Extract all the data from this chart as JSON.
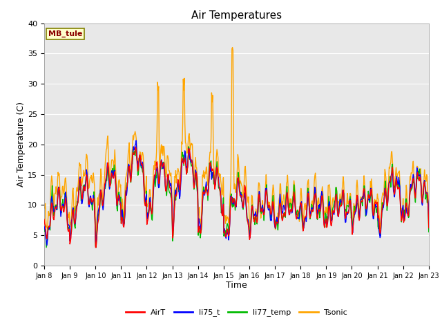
{
  "title": "Air Temperatures",
  "xlabel": "Time",
  "ylabel": "Air Temperature (C)",
  "ylim": [
    0,
    40
  ],
  "background_color": "#e8e8e8",
  "xtick_labels": [
    "Jan 8",
    "Jan 9",
    "Jan 10",
    "Jan 11",
    "Jan 12",
    "Jan 13",
    "Jan 14",
    "Jan 15",
    "Jan 16",
    "Jan 17",
    "Jan 18",
    "Jan 19",
    "Jan 20",
    "Jan 21",
    "Jan 22",
    "Jan 23"
  ],
  "annotation": "MB_tule",
  "annotation_color": "#8B0000",
  "annotation_bg": "#ffffcc",
  "annotation_border": "#808000",
  "series": {
    "AirT": {
      "color": "#ff0000",
      "lw": 1.0
    },
    "li75_t": {
      "color": "#0000ff",
      "lw": 1.0
    },
    "li77_temp": {
      "color": "#00bb00",
      "lw": 1.0
    },
    "Tsonic": {
      "color": "#ffa500",
      "lw": 1.0
    }
  }
}
